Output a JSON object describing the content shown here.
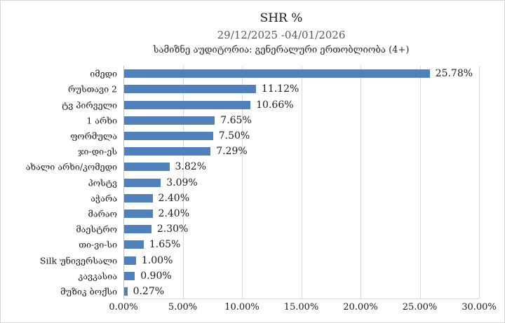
{
  "header": {
    "title": "SHR %",
    "subtitle": "29/12/2025 -04/01/2026",
    "audience_note": "სამიზნე აუდიტორია: გენერალური ერთობლიობა (4+)"
  },
  "chart_data": {
    "type": "bar",
    "orientation": "horizontal",
    "title": "SHR %",
    "subtitle": "29/12/2025 -04/01/2026",
    "audience_note": "სამიზნე აუდიტორია: გენერალური ერთობლიობა (4+)",
    "categories": [
      "იმედი",
      "რუსთავი 2",
      "ტვ პირველი",
      "1 არხი",
      "ფორმულა",
      "ჯი-დი-ეს",
      "ახალი არხი/კომედი",
      "პოსტვ",
      "აჭარა",
      "მარაო",
      "მაესტრო",
      "თი-ვი-სი",
      "Silk უნივერსალი",
      "კავკასია",
      "მუზიკ ბოქსი"
    ],
    "values": [
      25.78,
      11.12,
      10.66,
      7.65,
      7.5,
      7.29,
      3.82,
      3.09,
      2.4,
      2.4,
      2.3,
      1.65,
      1.0,
      0.9,
      0.27
    ],
    "value_labels": [
      "25.78%",
      "11.12%",
      "10.66%",
      "7.65%",
      "7.50%",
      "7.29%",
      "3.82%",
      "3.09%",
      "2.40%",
      "2.40%",
      "2.30%",
      "1.65%",
      "1.00%",
      "0.90%",
      "0.27%"
    ],
    "xlabel": "",
    "ylabel": "",
    "xlim": [
      0,
      30
    ],
    "x_ticks": [
      0,
      5,
      10,
      15,
      20,
      25,
      30
    ],
    "x_tick_labels": [
      "0.00%",
      "5.00%",
      "10.00%",
      "15.00%",
      "20.00%",
      "25.00%",
      "30.00%"
    ],
    "grid": "vertical-gridlines-on",
    "legend": "none",
    "bar_color": "#4f81bd",
    "gridline_color": "#d9d9d9"
  }
}
